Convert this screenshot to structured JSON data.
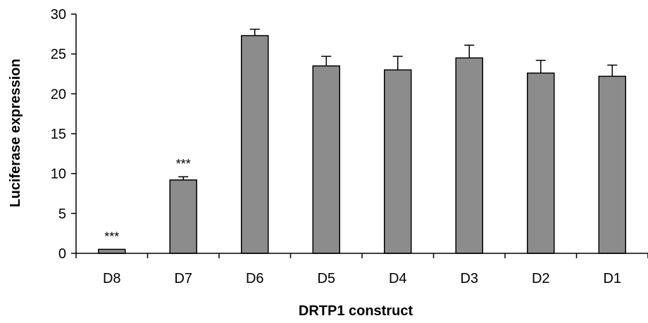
{
  "chart_data": {
    "type": "bar",
    "xlabel": "DRTP1 construct",
    "ylabel": "Luciferase expression",
    "ylim": [
      0,
      30
    ],
    "yticks": [
      0,
      5,
      10,
      15,
      20,
      25,
      30
    ],
    "categories": [
      "D8",
      "D7",
      "D6",
      "D5",
      "D4",
      "D3",
      "D2",
      "D1"
    ],
    "values": [
      0.5,
      9.2,
      27.3,
      23.5,
      23.0,
      24.5,
      22.6,
      22.2
    ],
    "errors": [
      0,
      0.4,
      0.8,
      1.2,
      1.7,
      1.6,
      1.6,
      1.4
    ],
    "annotations": [
      "***",
      "***",
      "",
      "",
      "",
      "",
      "",
      ""
    ],
    "bar_color": "#8c8c8c",
    "grid": false,
    "legend": "none"
  }
}
